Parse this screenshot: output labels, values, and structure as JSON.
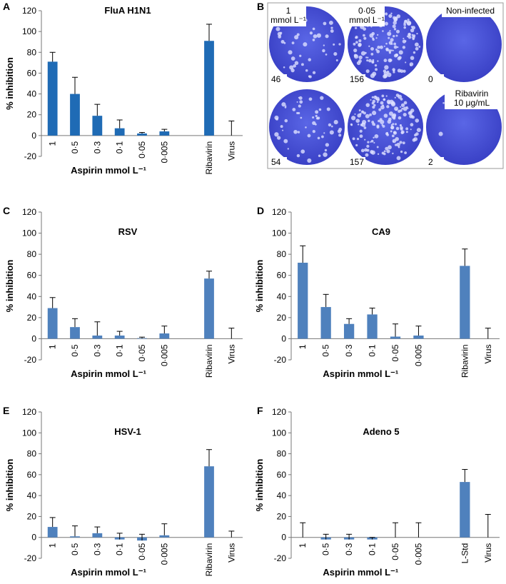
{
  "chart_data": [
    {
      "type": "bar",
      "panel": "A",
      "title": "FluA H1N1",
      "ylabel": "% inhibition",
      "xlabel": "Aspirin mmol L⁻¹",
      "categories": [
        "1",
        "0·5",
        "0·3",
        "0·1",
        "0·05",
        "0·005",
        null,
        "Ribavirin",
        "Virus"
      ],
      "values": [
        71,
        40,
        19,
        7,
        2,
        4,
        null,
        91,
        0
      ],
      "errors": [
        9,
        16,
        11,
        8,
        1,
        2,
        null,
        16,
        14
      ],
      "color": "#1f6bb5",
      "ylim": [
        -20,
        120
      ],
      "yticks": [
        -20,
        0,
        20,
        40,
        60,
        80,
        100,
        120
      ]
    },
    {
      "type": "bar",
      "panel": "C",
      "title": "RSV",
      "ylabel": "% inhibition",
      "xlabel": "Aspirin mmol L⁻¹",
      "categories": [
        "1",
        "0·5",
        "0·3",
        "0·1",
        "0·05",
        "0·005",
        null,
        "Ribavirin",
        "Virus"
      ],
      "values": [
        29,
        11,
        3,
        3,
        0.5,
        5,
        null,
        57,
        0
      ],
      "errors": [
        10,
        8,
        13,
        4,
        1,
        7,
        null,
        7,
        10
      ],
      "color": "#4f81bd",
      "ylim": [
        -20,
        120
      ],
      "yticks": [
        -20,
        0,
        20,
        40,
        60,
        80,
        100,
        120
      ]
    },
    {
      "type": "bar",
      "panel": "D",
      "title": "CA9",
      "ylabel": "% inhibition",
      "xlabel": "Aspirin mmol L⁻¹",
      "categories": [
        "1",
        "0·5",
        "0·3",
        "0·1",
        "0·05",
        "0·005",
        null,
        "Ribavirin",
        "Virus"
      ],
      "values": [
        72,
        30,
        14,
        23,
        2,
        3,
        null,
        69,
        0
      ],
      "errors": [
        16,
        12,
        5,
        6,
        12,
        9,
        null,
        16,
        10
      ],
      "color": "#4f81bd",
      "ylim": [
        -20,
        120
      ],
      "yticks": [
        -20,
        0,
        20,
        40,
        60,
        80,
        100,
        120
      ]
    },
    {
      "type": "bar",
      "panel": "E",
      "title": "HSV-1",
      "ylabel": "% inhibition",
      "xlabel": "Aspirin mmol L⁻¹",
      "categories": [
        "1",
        "0·5",
        "0·3",
        "0·1",
        "0·05",
        "0·005",
        null,
        "Ribavirin",
        "Virus"
      ],
      "values": [
        10,
        1,
        4,
        -2,
        -3,
        2,
        null,
        68,
        0
      ],
      "errors": [
        9,
        10,
        6,
        6,
        6,
        11,
        null,
        16,
        6
      ],
      "color": "#4f81bd",
      "ylim": [
        -20,
        120
      ],
      "yticks": [
        -20,
        0,
        20,
        40,
        60,
        80,
        100,
        120
      ]
    },
    {
      "type": "bar",
      "panel": "F",
      "title": "Adeno 5",
      "ylabel": "% inhibition",
      "xlabel": "Aspirin mmol L⁻¹",
      "categories": [
        "1",
        "0·5",
        "0·3",
        "0·1",
        "0·05",
        "0·005",
        null,
        "L-Std",
        "Virus"
      ],
      "values": [
        0,
        -2,
        -2,
        -2,
        0,
        0,
        null,
        53,
        0
      ],
      "errors": [
        14,
        5,
        5,
        2,
        14,
        14,
        null,
        12,
        22
      ],
      "color": "#4f81bd",
      "ylim": [
        -20,
        120
      ],
      "yticks": [
        -20,
        0,
        20,
        40,
        60,
        80,
        100,
        120
      ]
    }
  ],
  "plaque_panel": {
    "panel": "B",
    "wells": [
      {
        "label": "1 mmol L⁻¹",
        "count": 46
      },
      {
        "label": "0·05 mmol L⁻¹",
        "count": 156
      },
      {
        "label": "Non-infected",
        "count": 0
      },
      {
        "label": null,
        "count": 54
      },
      {
        "label": null,
        "count": 157
      },
      {
        "label": "Ribavirin 10 μg/mL",
        "count": 2
      }
    ]
  }
}
